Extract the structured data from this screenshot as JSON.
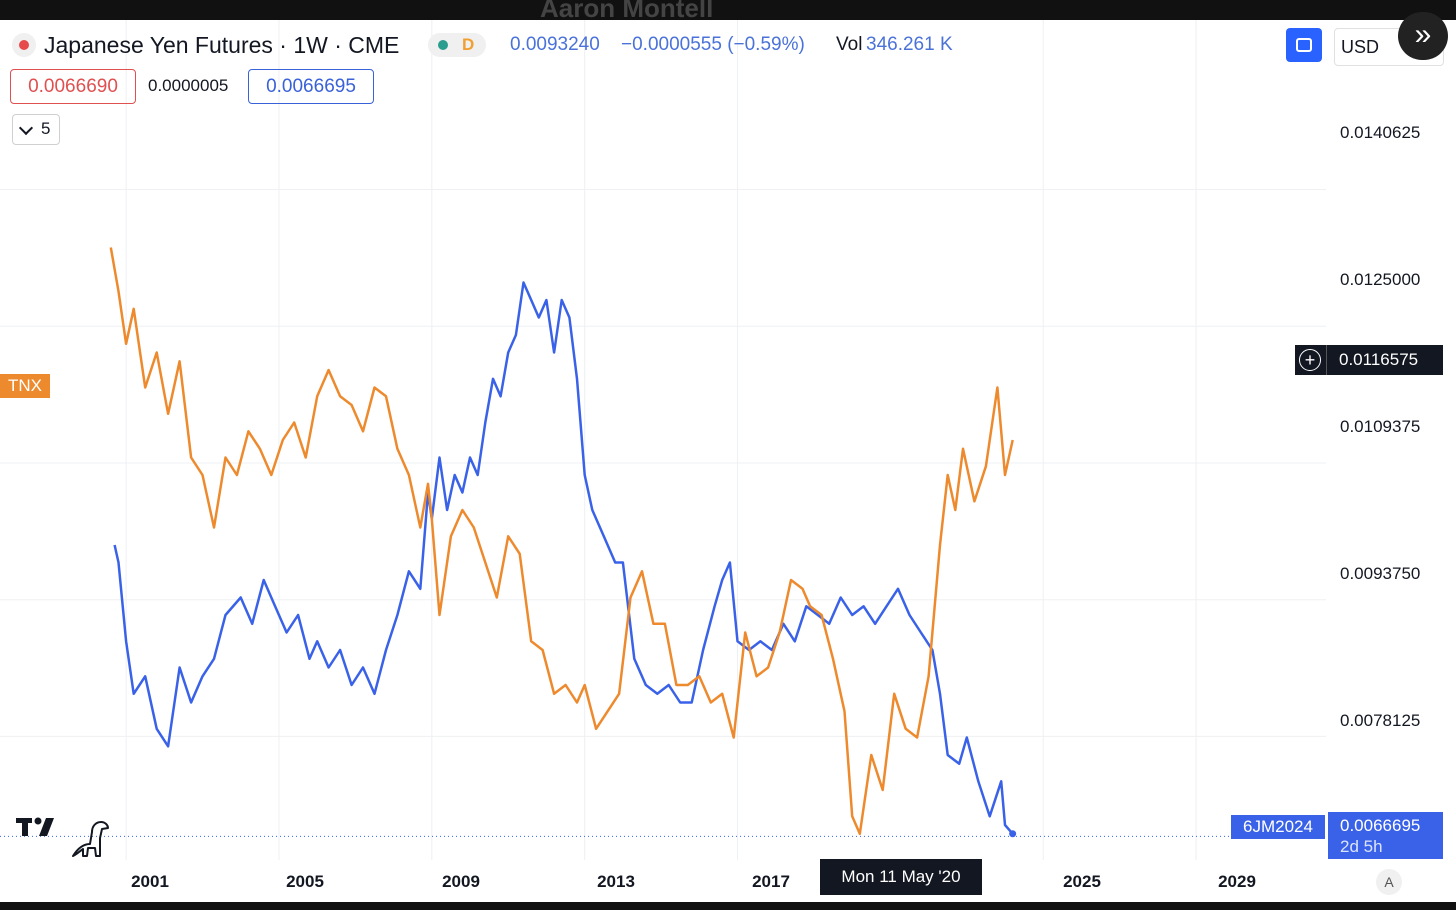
{
  "watermark": "Aaron Montell",
  "header": {
    "symbol_title": "Japanese Yen Futures · 1W · CME",
    "status_letter": "D",
    "last_price": "0.0093240",
    "change": "−0.0000555 (−0.59%)",
    "vol_label": "Vol",
    "vol_value": "346.261 K",
    "bid": "0.0066690",
    "spread": "0.0000005",
    "ask": "0.0066695",
    "collapsed_count": "5",
    "currency": "USD"
  },
  "icons": {
    "symbol_dot": "red-dot",
    "status_dot": "green-dot",
    "sync": "sync-square-icon",
    "expand": "double-chevron-right-icon",
    "collapse": "chevron-down-icon",
    "crosshair_add": "plus-circle-icon",
    "logo": "tradingview-logo",
    "dino": "dinosaur-icon"
  },
  "overlays": {
    "tnx_label": "TNX",
    "crosshair_price": "0.0116575",
    "crosshair_date": "Mon 11 May '20",
    "contract_label": "6JM2024",
    "current_price": "0.0066695",
    "countdown": "2d 5h",
    "auto_scale": "A"
  },
  "colors": {
    "yen_series": "#3a62e8",
    "tnx_series": "#ee8a2e",
    "bid": "#e05050",
    "ask": "#3a62d8",
    "accent": "#2962ff"
  },
  "chart_data": {
    "type": "line",
    "title": "Japanese Yen Futures · 1W · CME",
    "x_ticks": [
      "2001",
      "2005",
      "2009",
      "2013",
      "2017",
      "2025",
      "2029"
    ],
    "y_ticks": [
      "0.0140625",
      "0.0125000",
      "0.0109375",
      "0.0093750",
      "0.0078125"
    ],
    "ylim": [
      0.0064,
      0.0148
    ],
    "xlim": [
      1997.7,
      2032.4
    ],
    "grid": true,
    "series": [
      {
        "name": "",
        "color": "#3a62e8",
        "x": [
          2000.7,
          2000.8,
          2001.0,
          2001.2,
          2001.5,
          2001.8,
          2002.1,
          2002.4,
          2002.7,
          2003.0,
          2003.3,
          2003.6,
          2004.0,
          2004.3,
          2004.6,
          2004.9,
          2005.2,
          2005.5,
          2005.8,
          2006.0,
          2006.3,
          2006.6,
          2006.9,
          2007.2,
          2007.5,
          2007.8,
          2008.1,
          2008.4,
          2008.7,
          2008.9,
          2009.0,
          2009.2,
          2009.4,
          2009.6,
          2009.8,
          2010.0,
          2010.2,
          2010.4,
          2010.6,
          2010.8,
          2011.0,
          2011.2,
          2011.4,
          2011.6,
          2011.8,
          2012.0,
          2012.2,
          2012.4,
          2012.6,
          2012.8,
          2013.0,
          2013.2,
          2013.5,
          2013.8,
          2014.0,
          2014.3,
          2014.6,
          2014.9,
          2015.2,
          2015.5,
          2015.8,
          2016.1,
          2016.4,
          2016.6,
          2016.8,
          2017.0,
          2017.3,
          2017.6,
          2017.9,
          2018.2,
          2018.5,
          2018.8,
          2019.1,
          2019.4,
          2019.7,
          2020.0,
          2020.3,
          2020.6,
          2020.9,
          2021.2,
          2021.5,
          2021.8,
          2022.1,
          2022.3,
          2022.5,
          2022.8,
          2023.0,
          2023.3,
          2023.6,
          2023.9,
          2024.0,
          2024.2
        ],
        "values": [
          0.01,
          0.0098,
          0.0089,
          0.0083,
          0.0085,
          0.0079,
          0.0077,
          0.0086,
          0.0082,
          0.0085,
          0.0087,
          0.0092,
          0.0094,
          0.0091,
          0.0096,
          0.0093,
          0.009,
          0.0092,
          0.0087,
          0.0089,
          0.0086,
          0.0088,
          0.0084,
          0.0086,
          0.0083,
          0.0088,
          0.0092,
          0.0097,
          0.0095,
          0.0106,
          0.0103,
          0.011,
          0.0104,
          0.0108,
          0.0106,
          0.011,
          0.0108,
          0.0114,
          0.0119,
          0.0117,
          0.0122,
          0.0124,
          0.013,
          0.0128,
          0.0126,
          0.0128,
          0.0122,
          0.0128,
          0.0126,
          0.0119,
          0.0108,
          0.0104,
          0.0101,
          0.0098,
          0.0098,
          0.0087,
          0.0084,
          0.0083,
          0.0084,
          0.0082,
          0.0082,
          0.0088,
          0.0093,
          0.0096,
          0.0098,
          0.0089,
          0.0088,
          0.0089,
          0.0088,
          0.0091,
          0.0089,
          0.0093,
          0.0092,
          0.0091,
          0.0094,
          0.0092,
          0.0093,
          0.0091,
          0.0093,
          0.0095,
          0.0092,
          0.009,
          0.0088,
          0.0083,
          0.0076,
          0.0075,
          0.0078,
          0.0073,
          0.0069,
          0.0073,
          0.0068,
          0.0067
        ]
      },
      {
        "name": "TNX",
        "color": "#ee8a2e",
        "x": [
          2000.6,
          2000.8,
          2001.0,
          2001.2,
          2001.5,
          2001.8,
          2002.1,
          2002.4,
          2002.7,
          2003.0,
          2003.3,
          2003.6,
          2003.9,
          2004.2,
          2004.5,
          2004.8,
          2005.1,
          2005.4,
          2005.7,
          2006.0,
          2006.3,
          2006.6,
          2006.9,
          2007.2,
          2007.5,
          2007.8,
          2008.1,
          2008.4,
          2008.7,
          2008.9,
          2009.0,
          2009.2,
          2009.5,
          2009.8,
          2010.1,
          2010.4,
          2010.7,
          2011.0,
          2011.3,
          2011.6,
          2011.9,
          2012.2,
          2012.5,
          2012.8,
          2013.0,
          2013.3,
          2013.6,
          2013.9,
          2014.2,
          2014.5,
          2014.8,
          2015.1,
          2015.4,
          2015.7,
          2016.0,
          2016.3,
          2016.6,
          2016.9,
          2017.2,
          2017.5,
          2017.8,
          2018.1,
          2018.4,
          2018.7,
          2018.9,
          2019.2,
          2019.5,
          2019.8,
          2020.0,
          2020.2,
          2020.5,
          2020.8,
          2021.1,
          2021.4,
          2021.7,
          2022.0,
          2022.3,
          2022.5,
          2022.7,
          2022.9,
          2023.2,
          2023.5,
          2023.8,
          2024.0,
          2024.2
        ],
        "values": [
          0.0134,
          0.0129,
          0.0123,
          0.0127,
          0.0118,
          0.0122,
          0.0115,
          0.0121,
          0.011,
          0.0108,
          0.0102,
          0.011,
          0.0108,
          0.0113,
          0.0111,
          0.0108,
          0.0112,
          0.0114,
          0.011,
          0.0117,
          0.012,
          0.0117,
          0.0116,
          0.0113,
          0.0118,
          0.0117,
          0.0111,
          0.0108,
          0.0102,
          0.0107,
          0.0103,
          0.0092,
          0.0101,
          0.0104,
          0.0102,
          0.0098,
          0.0094,
          0.0101,
          0.0099,
          0.0089,
          0.0088,
          0.0083,
          0.0084,
          0.0082,
          0.0084,
          0.0079,
          0.0081,
          0.0083,
          0.0094,
          0.0097,
          0.0091,
          0.0091,
          0.0084,
          0.0084,
          0.0085,
          0.0082,
          0.0083,
          0.0078,
          0.009,
          0.0085,
          0.0086,
          0.009,
          0.0096,
          0.0095,
          0.0093,
          0.0092,
          0.0087,
          0.0081,
          0.0069,
          0.0067,
          0.0076,
          0.0072,
          0.0083,
          0.0079,
          0.0078,
          0.0085,
          0.01,
          0.0108,
          0.0104,
          0.0111,
          0.0105,
          0.0109,
          0.0118,
          0.0108,
          0.0112
        ]
      }
    ],
    "current_price_line": 0.0066695
  }
}
